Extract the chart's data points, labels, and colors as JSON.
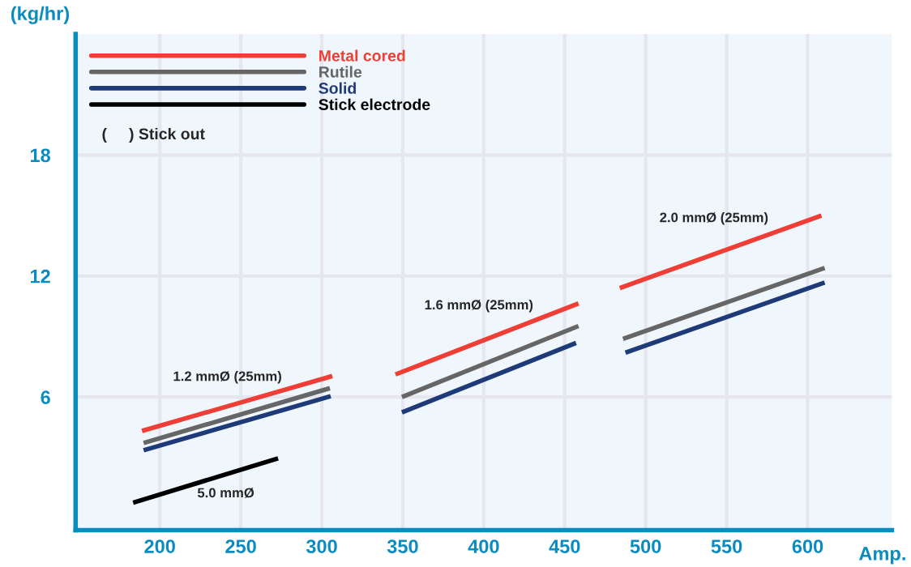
{
  "chart_data": {
    "type": "line",
    "xlabel": "Amp.",
    "ylabel": "(kg/hr)",
    "xlim": [
      148,
      652
    ],
    "ylim": [
      -0.6,
      24
    ],
    "xticks": [
      200,
      250,
      300,
      350,
      400,
      450,
      500,
      550,
      600
    ],
    "yticks": [
      6,
      12,
      18
    ],
    "grid": true,
    "legend": "top left",
    "marker": "none",
    "line_style": "solid",
    "series": [
      {
        "name": "Metal cored",
        "color": "#ef3e36",
        "x": [
          189,
          306.5,
          326,
          345.5,
          458.5,
          471,
          484,
          608.5
        ],
        "values": [
          4.32,
          7.04,
          null,
          7.12,
          10.64,
          null,
          11.4,
          15.0
        ]
      },
      {
        "name": "Rutile",
        "color": "#666666",
        "x": [
          190,
          305,
          327,
          349.5,
          458.5,
          472,
          486,
          610.5
        ],
        "values": [
          3.72,
          6.44,
          null,
          6.0,
          9.52,
          null,
          8.88,
          12.4
        ]
      },
      {
        "name": "Solid",
        "color": "#1f3a78",
        "x": [
          190,
          305.5,
          327,
          349.5,
          457,
          472,
          487.5,
          610.5
        ],
        "values": [
          3.36,
          6.04,
          null,
          5.24,
          8.68,
          null,
          8.2,
          11.68
        ]
      },
      {
        "name": "Stick electrode",
        "color": "#000000",
        "x": [
          183.5,
          273
        ],
        "values": [
          0.76,
          2.96
        ]
      }
    ],
    "annotations": [
      "1.2 mmØ (25mm)",
      "5.0 mmØ",
      "1.6 mmØ (25mm)",
      "2.0 mmØ (25mm)",
      "(     ) Stick out"
    ]
  }
}
